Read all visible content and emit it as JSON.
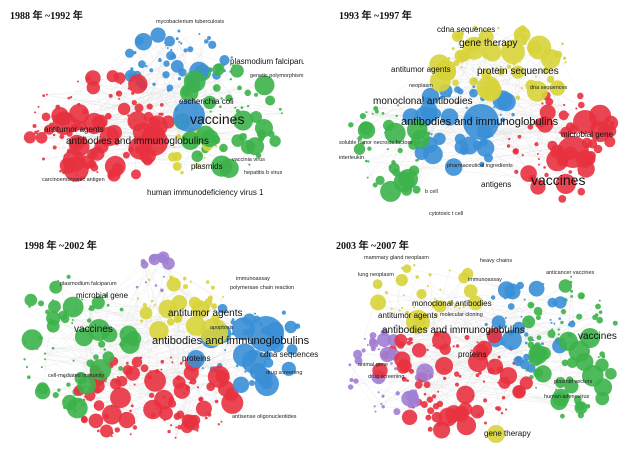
{
  "colors": {
    "red": "#e8313f",
    "green": "#3cb34a",
    "blue": "#3a8fd6",
    "yellow": "#d8d43a",
    "purple": "#a07ed4",
    "edge": "#c9c9c9"
  },
  "panels": [
    {
      "title": "1988 年 ~1992 年",
      "labels": [
        "vaccines",
        "antibodies and immunoglobulins",
        "antitumor agents",
        "escherichia coli",
        "plasmodium falciparum",
        "plasmids",
        "human immunodeficiency virus 1",
        "hepatitis b virus",
        "mycobacterium tuberculosis",
        "genetic polymorphism",
        "carcinoembryonic antigen",
        "vaccinia virus"
      ]
    },
    {
      "title": "1993 年 ~1997 年",
      "labels": [
        "antibodies and immunoglobulins",
        "monoclonal antibodies",
        "vaccines",
        "gene therapy",
        "protein sequences",
        "antitumor agents",
        "cdna sequences",
        "dna sequences",
        "antigens",
        "microbial gene",
        "neoplasm",
        "interleukin",
        "soluble tumor necrosis factors",
        "cytotoxic t cell",
        "pharmaceutical ingredients",
        "b cell"
      ]
    },
    {
      "title": "1998 年 ~2002 年",
      "labels": [
        "antibodies and immunoglobulins",
        "antitumor agents",
        "vaccines",
        "microbial gene",
        "proteins",
        "cdna sequences",
        "drug screening",
        "immunoassay",
        "apoptosis",
        "plasmodium falciparum",
        "polymerase chain reaction",
        "cell-mediated immunity",
        "antisense oligonucleotides"
      ]
    },
    {
      "title": "2003 年 ~2007 年",
      "labels": [
        "antibodies and immunoglobulins",
        "monoclonal antibodies",
        "antitumor agents",
        "vaccines",
        "gene therapy",
        "proteins",
        "molecular cloning",
        "mammary gland neoplasm",
        "immunoassay",
        "lung neoplasm",
        "plasmid vectors",
        "human adenovirus",
        "animal gene",
        "heavy chains",
        "drug screening",
        "anticancer vaccines"
      ]
    }
  ]
}
